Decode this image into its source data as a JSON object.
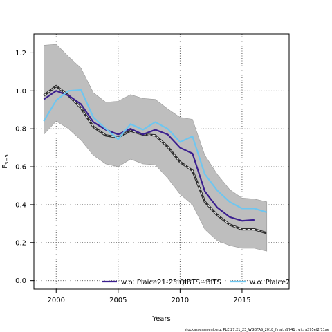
{
  "chart_data": {
    "type": "line",
    "xlabel": "Years",
    "ylabel": "F",
    "ylabel_sub": "3−5",
    "xlim": [
      1998.2,
      2018.8
    ],
    "ylim": [
      -0.045,
      1.3
    ],
    "xticks": [
      2000,
      2005,
      2010,
      2015
    ],
    "yticks": [
      0.0,
      0.2,
      0.4,
      0.6,
      0.8,
      1.0,
      1.2
    ],
    "ytick_labels": [
      "0.0",
      "0.2",
      "0.4",
      "0.6",
      "0.8",
      "1.0",
      "1.2"
    ],
    "grid": true,
    "legend_position": "bottom",
    "band": {
      "x": [
        1999,
        2000,
        2001,
        2002,
        2003,
        2004,
        2005,
        2006,
        2007,
        2008,
        2009,
        2010,
        2011,
        2012,
        2013,
        2014,
        2015,
        2016,
        2017
      ],
      "upper": [
        1.24,
        1.245,
        1.18,
        1.12,
        0.99,
        0.94,
        0.945,
        0.98,
        0.96,
        0.955,
        0.905,
        0.86,
        0.85,
        0.66,
        0.56,
        0.48,
        0.435,
        0.43,
        0.415
      ],
      "lower": [
        0.77,
        0.84,
        0.8,
        0.74,
        0.66,
        0.615,
        0.6,
        0.64,
        0.615,
        0.61,
        0.54,
        0.455,
        0.4,
        0.27,
        0.21,
        0.185,
        0.17,
        0.17,
        0.155
      ]
    },
    "series": [
      {
        "name": "",
        "color": "#2b2b2b",
        "style": "dashed-outline",
        "x": [
          1999,
          2000,
          2001,
          2002,
          2003,
          2004,
          2005,
          2006,
          2007,
          2008,
          2009,
          2010,
          2011,
          2012,
          2013,
          2014,
          2015,
          2016,
          2017
        ],
        "values": [
          0.975,
          1.025,
          0.975,
          0.91,
          0.81,
          0.765,
          0.755,
          0.79,
          0.77,
          0.765,
          0.705,
          0.625,
          0.58,
          0.415,
          0.345,
          0.295,
          0.27,
          0.27,
          0.25
        ]
      },
      {
        "name": "w.o. Plaice21-23IQIBTS+BITS",
        "color": "#3b1f8f",
        "style": "solid",
        "x": [
          1999,
          2000,
          2001,
          2002,
          2003,
          2004,
          2005,
          2006,
          2007,
          2008,
          2009,
          2010,
          2011,
          2012,
          2013,
          2014,
          2015,
          2016
        ],
        "values": [
          0.955,
          1.0,
          0.975,
          0.93,
          0.835,
          0.795,
          0.77,
          0.8,
          0.77,
          0.795,
          0.77,
          0.7,
          0.67,
          0.47,
          0.385,
          0.335,
          0.315,
          0.32
        ]
      },
      {
        "name": "w.o. Plaice2",
        "color": "#6ec6f0",
        "style": "solid",
        "x": [
          1999,
          2000,
          2001,
          2002,
          2003,
          2004,
          2005,
          2006,
          2007,
          2008,
          2009,
          2010,
          2011,
          2012,
          2013,
          2014,
          2015,
          2016,
          2017
        ],
        "values": [
          0.84,
          0.95,
          1.0,
          1.005,
          0.86,
          0.8,
          0.745,
          0.825,
          0.795,
          0.835,
          0.8,
          0.73,
          0.76,
          0.56,
          0.475,
          0.415,
          0.38,
          0.38,
          0.36
        ]
      }
    ],
    "footer": "stockassessment.org, PLE.27.21_23_WGBFAS_2018_final, r9741 , git: a295ef2f11ae"
  }
}
